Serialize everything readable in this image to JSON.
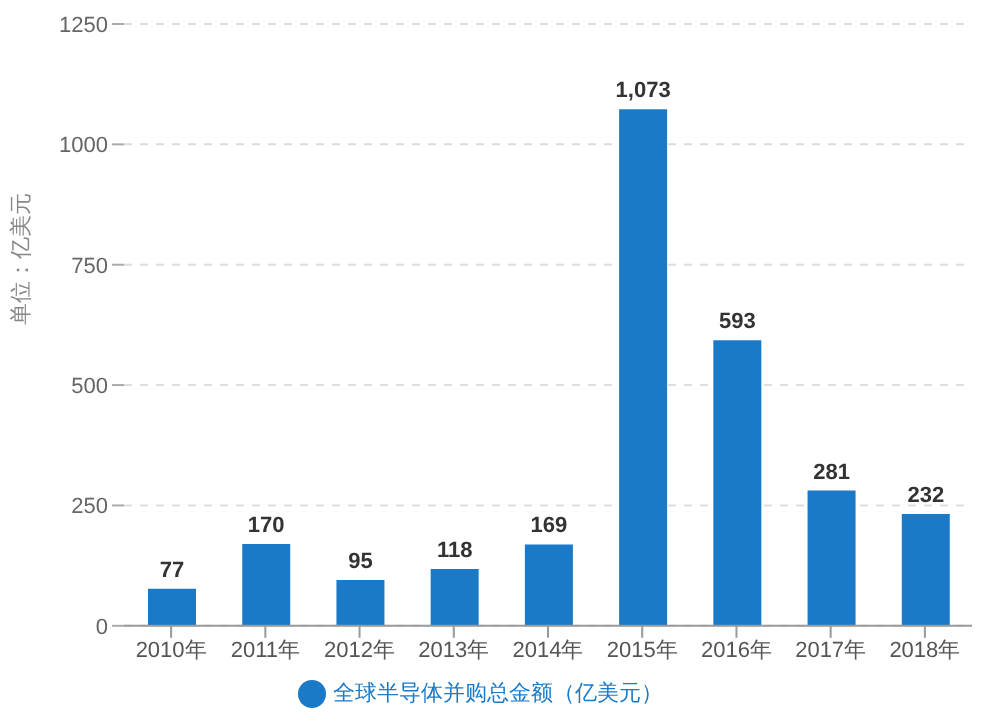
{
  "chart_data": {
    "type": "bar",
    "ylabel": "单位：亿美元",
    "categories": [
      "2010年",
      "2011年",
      "2012年",
      "2013年",
      "2014年",
      "2015年",
      "2016年",
      "2017年",
      "2018年"
    ],
    "series": [
      {
        "name": "全球半导体并购总金额（亿美元）",
        "color": "#1a7ac7",
        "values": [
          77,
          170,
          95,
          118,
          169,
          1073,
          593,
          281,
          232
        ],
        "value_labels": [
          "77",
          "170",
          "95",
          "118",
          "169",
          "1,073",
          "593",
          "281",
          "232"
        ]
      }
    ],
    "ylim": [
      0,
      1250
    ],
    "yticks": [
      0,
      250,
      500,
      750,
      1000,
      1250
    ],
    "grid": "y",
    "legend": "bottom"
  }
}
